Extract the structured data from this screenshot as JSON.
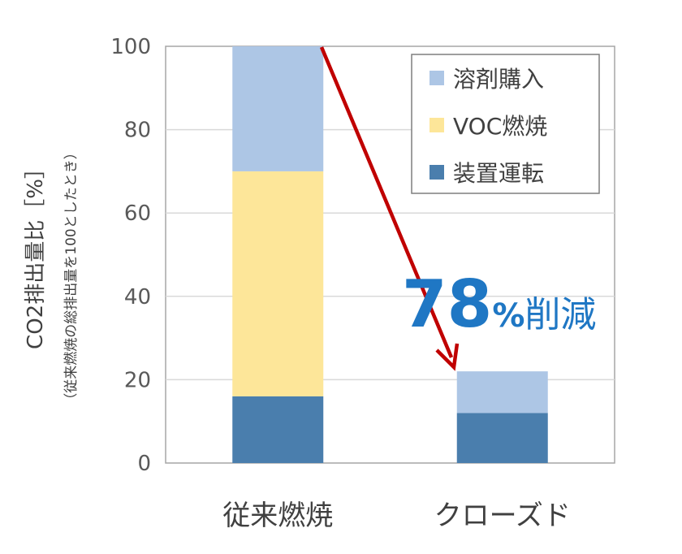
{
  "chart_data": {
    "type": "bar",
    "stacked": true,
    "categories": [
      "従来燃焼",
      "クローズド"
    ],
    "series": [
      {
        "name": "装置運転",
        "values": [
          16,
          12
        ],
        "color": "#4a7ead"
      },
      {
        "name": "VOC燃焼",
        "values": [
          54,
          0
        ],
        "color": "#fde699"
      },
      {
        "name": "溶剤購入",
        "values": [
          30,
          10
        ],
        "color": "#adc6e5"
      }
    ],
    "legend_order": [
      "溶剤購入",
      "VOC燃焼",
      "装置運転"
    ],
    "ylabel": "CO2排出量比［%］",
    "ylabel_sub": "（従来燃焼の総排出量を100としたとき）",
    "ylim": [
      0,
      100
    ],
    "yticks": [
      "0",
      "20",
      "40",
      "60",
      "80",
      "100"
    ],
    "grid": true,
    "legend_position": "top-right",
    "annotation": {
      "number": "78",
      "percent": "%",
      "word": "削減",
      "color": "#1f77c4"
    },
    "arrow_color": "#c00000"
  }
}
